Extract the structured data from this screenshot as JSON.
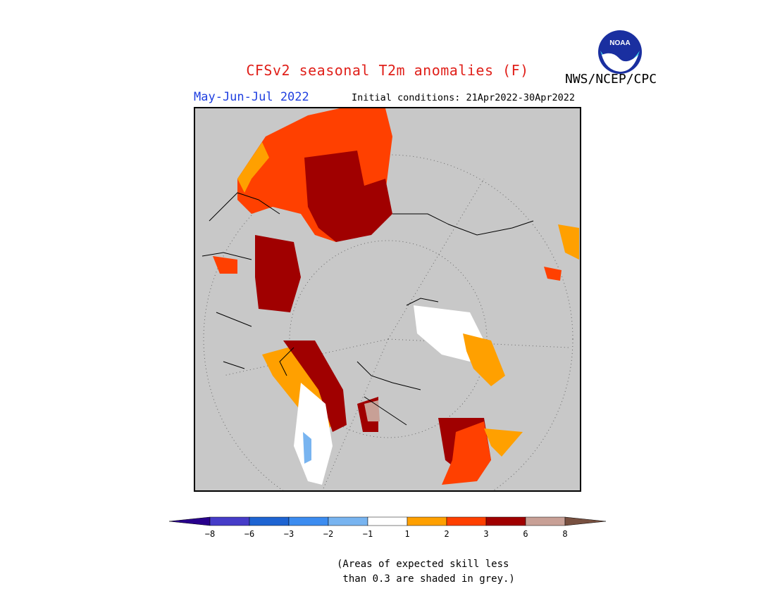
{
  "header": {
    "title": "CFSv2 seasonal T2m anomalies (F)",
    "org": "NWS/NCEP/CPC",
    "season": "May-Jun-Jul 2022",
    "initial_conditions": "Initial conditions: 21Apr2022-30Apr2022"
  },
  "logo": {
    "text": "NOAA",
    "icon": "noaa-logo-icon"
  },
  "colors": {
    "grey_skill": "#c8c8c8",
    "lt1_to_1": "#ffffff",
    "1_2": "#ffa000",
    "2_3": "#ff4000",
    "3_6": "#a00000",
    "6_8": "#c8a096",
    "gt8": "#785040",
    "neg1_neg2": "#78b4f0",
    "neg2_neg3": "#3c8cf0",
    "neg3_neg6": "#1e64d2",
    "neg6_neg8": "#463cc8",
    "lt_neg8": "#28008c"
  },
  "colorbar": {
    "labels": [
      "−8",
      "−6",
      "−3",
      "−2",
      "−1",
      "1",
      "2",
      "3",
      "6",
      "8"
    ],
    "segments": [
      "#463cc8",
      "#1e64d2",
      "#3c8cf0",
      "#78b4f0",
      "#ffffff",
      "#ffa000",
      "#ff4000",
      "#a00000",
      "#c8a096"
    ],
    "low_arrow": "#28008c",
    "high_arrow": "#785040"
  },
  "footnote": {
    "line1": "(Areas of expected skill less",
    "line2": " than 0.3 are shaded in grey.)"
  }
}
